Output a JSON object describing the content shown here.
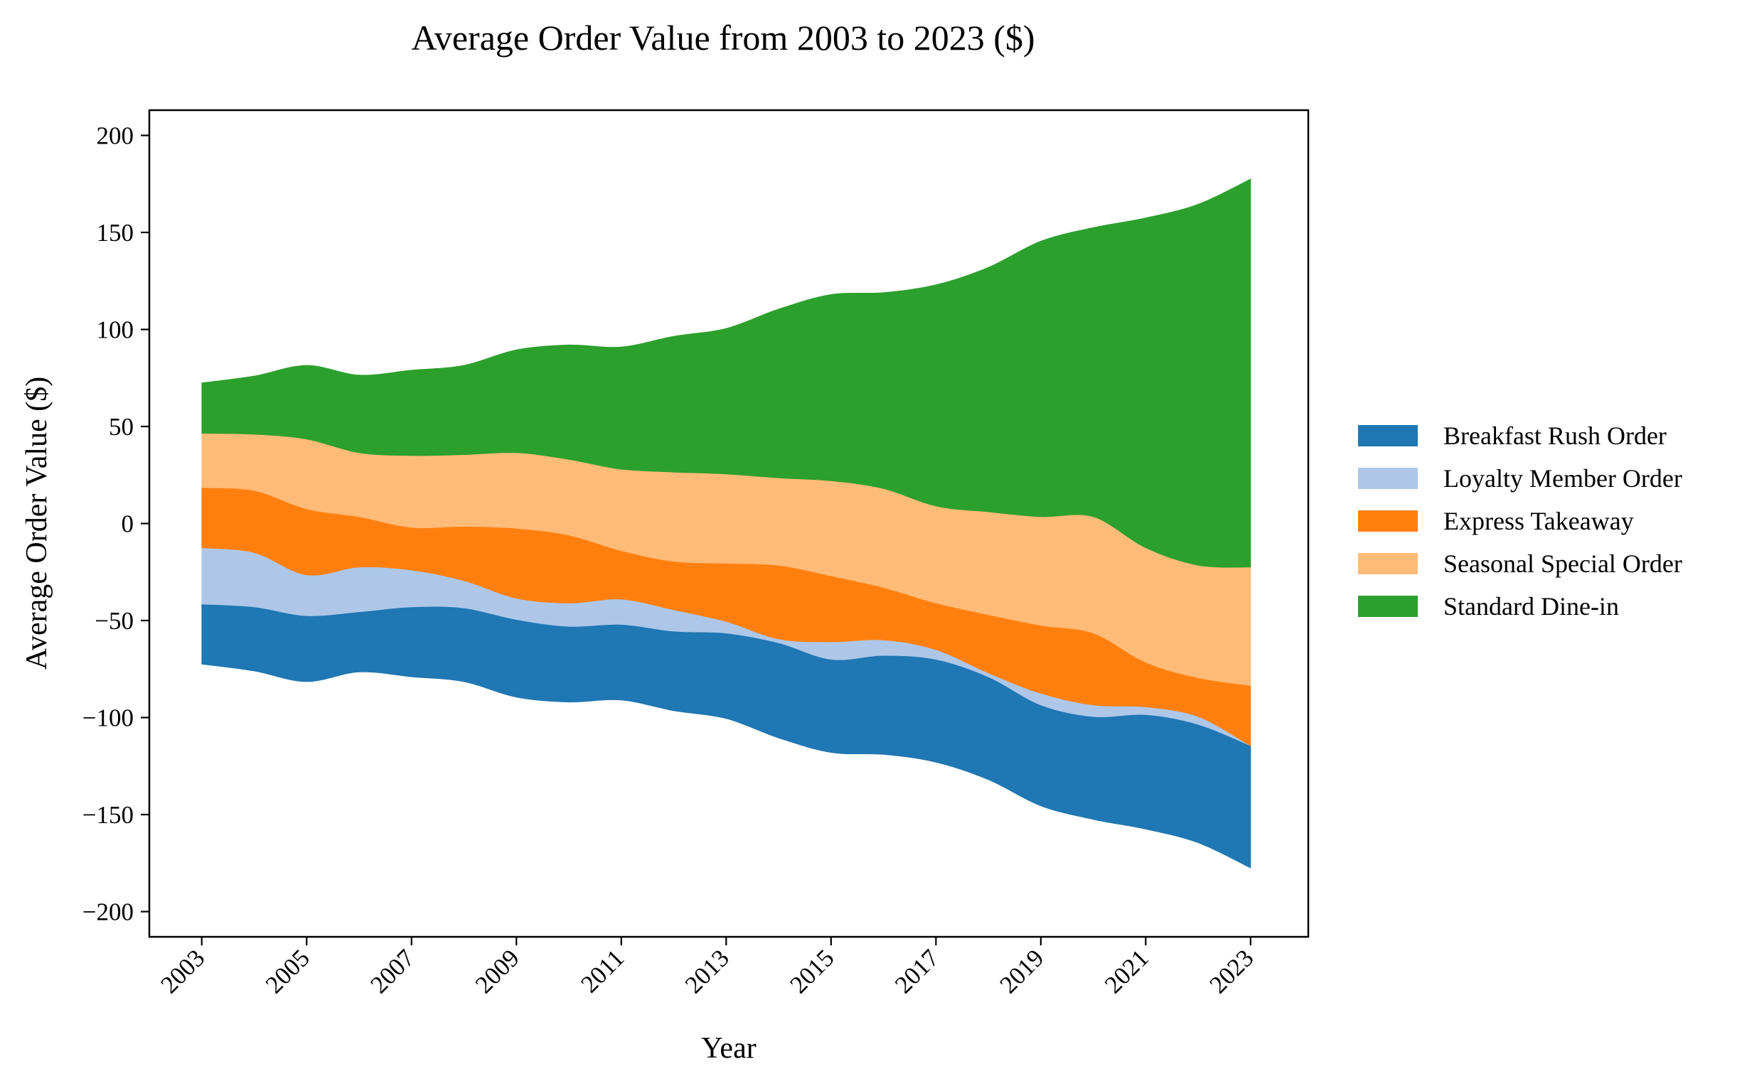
{
  "chart_data": {
    "type": "area",
    "subtype": "streamgraph",
    "title": "Average Order Value from 2003 to 2023 ($)",
    "xlabel": "Year",
    "ylabel": "Average Order Value ($)",
    "x": [
      2003,
      2004,
      2005,
      2006,
      2007,
      2008,
      2009,
      2010,
      2011,
      2012,
      2013,
      2014,
      2015,
      2016,
      2017,
      2018,
      2019,
      2020,
      2021,
      2022,
      2023
    ],
    "xticks": [
      "2003",
      "2005",
      "2007",
      "2009",
      "2011",
      "2013",
      "2015",
      "2017",
      "2019",
      "2021",
      "2023"
    ],
    "xlim": [
      2002,
      2024.1
    ],
    "ylim": [
      -213,
      213
    ],
    "yticks": [
      200,
      150,
      100,
      50,
      0,
      -50,
      -100,
      -150,
      -200
    ],
    "ytick_labels": [
      "200",
      "150",
      "100",
      "50",
      "0",
      "−50",
      "−100",
      "−150",
      "−200"
    ],
    "grid": false,
    "legend_position": "right",
    "series": [
      {
        "name": "Breakfast Rush Order",
        "color": "#1f77b4",
        "values": [
          31,
          33,
          34,
          31,
          36,
          38,
          40,
          39,
          39,
          41,
          44,
          49,
          48,
          51,
          53,
          53,
          52,
          53,
          59,
          61,
          63
        ]
      },
      {
        "name": "Loyalty Member Order",
        "color": "#aec7e8",
        "values": [
          29,
          28,
          21,
          23,
          19,
          14,
          11,
          12,
          13,
          11,
          6,
          2,
          9,
          8,
          5,
          2,
          6,
          6,
          4,
          4,
          0
        ]
      },
      {
        "name": "Express Takeaway",
        "color": "#ff7f0e",
        "values": [
          31,
          32,
          34,
          26,
          22,
          28,
          36,
          35,
          25,
          25,
          30,
          38,
          34,
          27,
          24,
          30,
          35,
          37,
          23,
          20,
          31
        ]
      },
      {
        "name": "Seasonal Special Order",
        "color": "#ffbb78",
        "values": [
          28,
          29,
          36,
          33,
          37,
          37,
          39,
          39,
          42,
          46,
          46,
          45,
          49,
          51,
          50,
          53,
          56,
          60,
          59,
          58,
          61
        ]
      },
      {
        "name": "Standard Dine-in",
        "color": "#2ca02c",
        "values": [
          26,
          30,
          38,
          40,
          44,
          46,
          53,
          59,
          63,
          70,
          75,
          87,
          96,
          101,
          114,
          126,
          142,
          149,
          170,
          186,
          200
        ]
      }
    ]
  }
}
